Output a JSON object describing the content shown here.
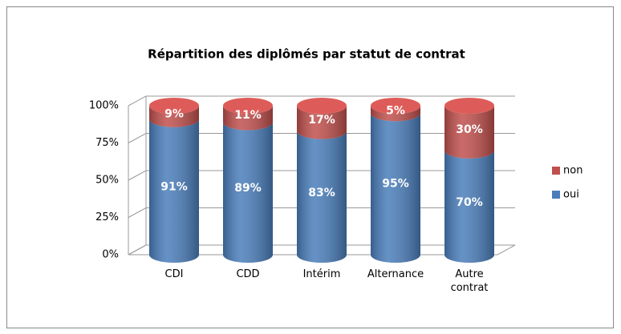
{
  "chart_data": {
    "type": "stacked-cylinder",
    "title": "Répartition des diplômés par statut de contrat",
    "categories": [
      "CDI",
      "CDD",
      "Intérim",
      "Alternance",
      "Autre contrat"
    ],
    "series": [
      {
        "name": "oui",
        "color": "#4a7ebb",
        "values": [
          91,
          89,
          83,
          95,
          70
        ],
        "value_labels": [
          "91%",
          "89%",
          "83%",
          "95%",
          "70%"
        ]
      },
      {
        "name": "non",
        "color": "#c0504d",
        "values": [
          9,
          11,
          17,
          5,
          30
        ],
        "value_labels": [
          "9%",
          "11%",
          "17%",
          "5%",
          "30%"
        ]
      }
    ],
    "ylim": [
      0,
      100
    ],
    "yticks": [
      {
        "value": 0,
        "label": "0%"
      },
      {
        "value": 25,
        "label": "25%"
      },
      {
        "value": 50,
        "label": "50%"
      },
      {
        "value": 75,
        "label": "75%"
      },
      {
        "value": 100,
        "label": "100%"
      }
    ],
    "grid": true,
    "legend": "right"
  }
}
